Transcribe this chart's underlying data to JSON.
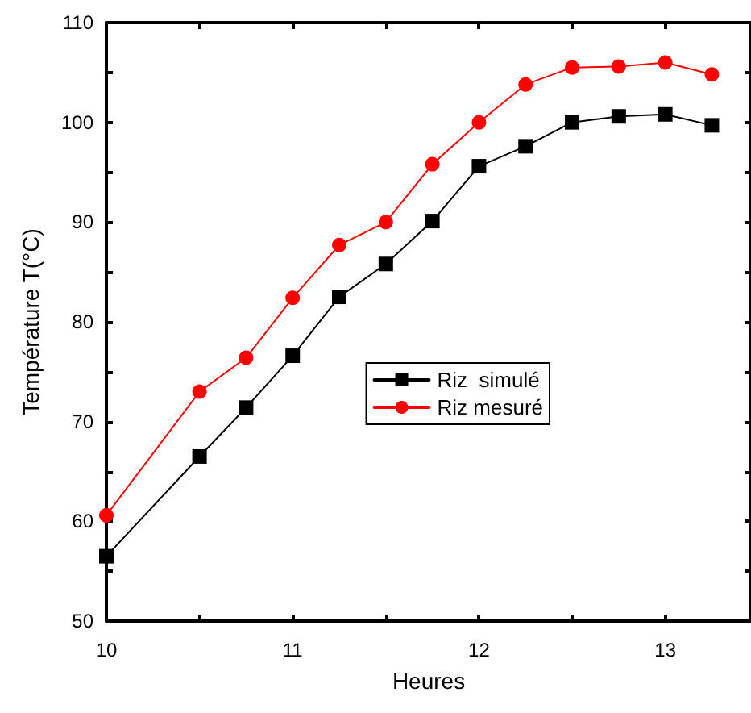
{
  "chart_data": {
    "type": "line",
    "xlabel": "Heures",
    "ylabel": "Température T(°C)",
    "xlim": [
      10,
      13.46
    ],
    "ylim": [
      50,
      110
    ],
    "xticks": [
      10,
      {
        "value": 10.5,
        "label": null
      },
      11,
      {
        "value": 11.5,
        "label": null
      },
      12,
      {
        "value": 12.5,
        "label": null
      },
      13
    ],
    "yticks": [
      50,
      {
        "value": 55,
        "label": null
      },
      60,
      {
        "value": 65,
        "label": null
      },
      70,
      {
        "value": 75,
        "label": null
      },
      80,
      {
        "value": 85,
        "label": null
      },
      90,
      {
        "value": 95,
        "label": null
      },
      100,
      {
        "value": 105,
        "label": null
      },
      110
    ],
    "x": [
      10,
      10.5,
      10.75,
      11,
      11.25,
      11.5,
      11.75,
      12,
      12.25,
      12.5,
      12.75,
      13,
      13.25
    ],
    "series": [
      {
        "name": "Riz  simulé",
        "color": "#000000",
        "marker": "square",
        "values": [
          56.5,
          66.5,
          71.4,
          76.6,
          82.5,
          85.8,
          90.1,
          95.6,
          97.6,
          100.0,
          100.6,
          100.8,
          99.7
        ]
      },
      {
        "name": "Riz mesuré",
        "color": "#ff0000",
        "marker": "circle",
        "values": [
          60.6,
          73.0,
          76.4,
          82.4,
          87.7,
          90.0,
          95.8,
          100.0,
          103.8,
          105.5,
          105.6,
          106.0,
          104.8
        ]
      }
    ],
    "grid": false,
    "legend": "right",
    "line_style": "solid"
  }
}
